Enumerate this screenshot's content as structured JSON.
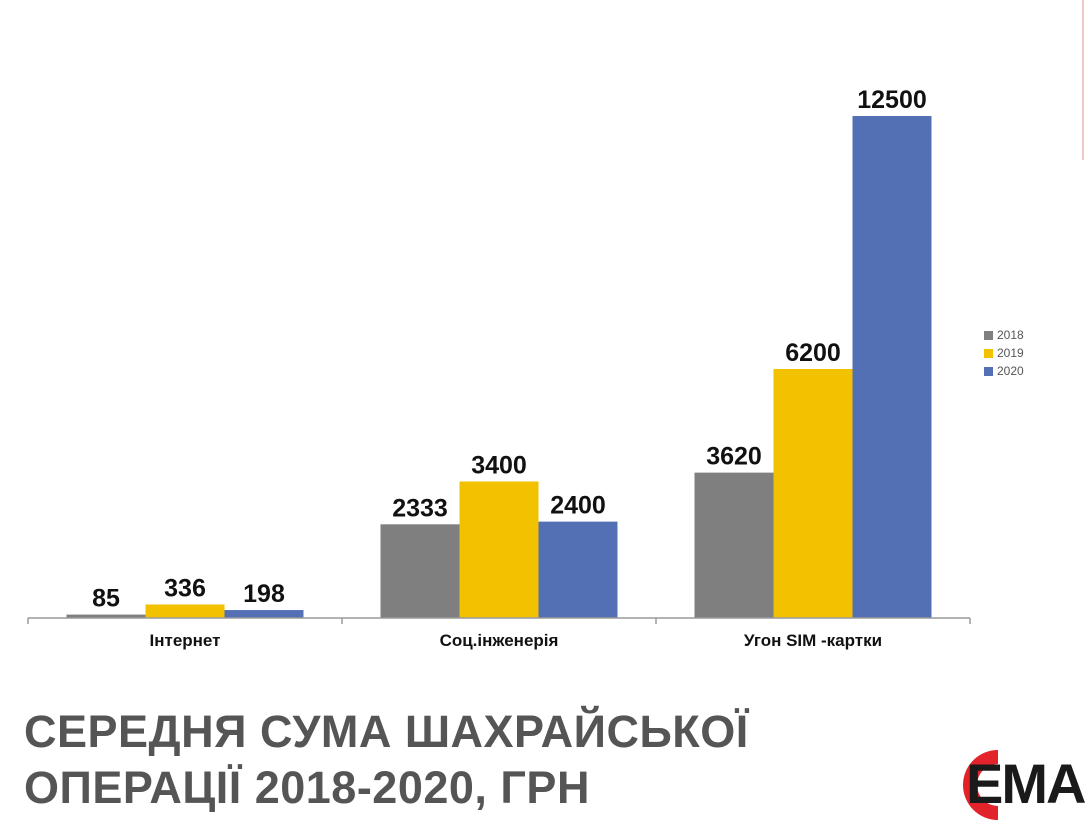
{
  "chart_data": {
    "type": "bar",
    "title": "СЕРЕДНЯ СУМА ШАХРАЙСЬКОЇ ОПЕРАЦІЇ 2018-2020, ГРН",
    "title_lines": [
      "СЕРЕДНЯ СУМА ШАХРАЙСЬКОЇ",
      "ОПЕРАЦІЇ 2018-2020, ГРН"
    ],
    "categories": [
      "Інтернет",
      "Соц.інженерія",
      "Угон SIM -картки"
    ],
    "series": [
      {
        "name": "2018",
        "values": [
          85,
          2333,
          3620
        ],
        "color": "#7f7f7f"
      },
      {
        "name": "2019",
        "values": [
          336,
          3400,
          6200
        ],
        "color": "#f2c100"
      },
      {
        "name": "2020",
        "values": [
          198,
          2400,
          12500
        ],
        "color": "#5470b5"
      }
    ],
    "ylim": [
      0,
      12500
    ],
    "legend": "right",
    "grid": false,
    "xlabel": "",
    "ylabel": ""
  },
  "logo": {
    "text": "ЕМА",
    "accent": "#e2232a"
  }
}
